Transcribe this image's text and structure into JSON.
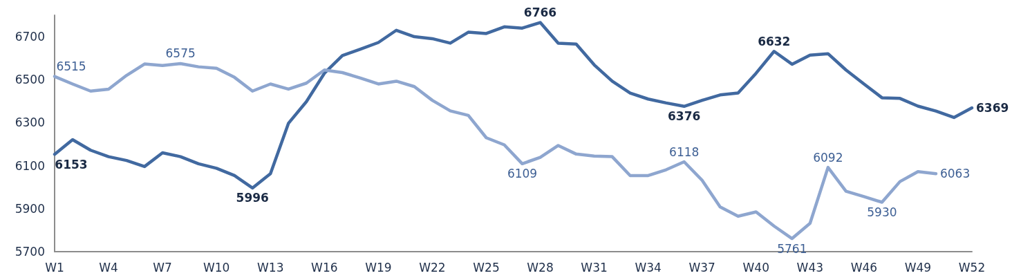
{
  "chart_data": {
    "type": "line",
    "categories": [
      "W1",
      null,
      null,
      "W4",
      null,
      null,
      "W7",
      null,
      null,
      "W10",
      null,
      null,
      "W13",
      null,
      null,
      "W16",
      null,
      null,
      "W19",
      null,
      null,
      "W22",
      null,
      null,
      "W25",
      null,
      null,
      "W28",
      null,
      null,
      "W31",
      null,
      null,
      "W34",
      null,
      null,
      "W37",
      null,
      null,
      "W40",
      null,
      null,
      "W43",
      null,
      null,
      "W46",
      null,
      null,
      "W49",
      null,
      null,
      "W52"
    ],
    "series": [
      {
        "color": "#4169a0",
        "values": [
          6153,
          6221,
          6172,
          6142,
          6124,
          6096,
          6160,
          6142,
          6109,
          6088,
          6054,
          5996,
          6063,
          6297,
          6398,
          6530,
          6612,
          6642,
          6673,
          6730,
          6700,
          6691,
          6670,
          6721,
          6715,
          6746,
          6740,
          6766,
          6670,
          6666,
          6569,
          6493,
          6438,
          6410,
          6392,
          6376,
          6404,
          6429,
          6438,
          6530,
          6632,
          6572,
          6614,
          6621,
          6545,
          6480,
          6416,
          6413,
          6377,
          6354,
          6324,
          6369
        ],
        "value_labels": [
          "6153",
          null,
          null,
          null,
          null,
          null,
          null,
          null,
          null,
          null,
          null,
          "5996",
          null,
          null,
          null,
          null,
          null,
          null,
          null,
          null,
          null,
          null,
          null,
          null,
          null,
          null,
          null,
          "6766",
          null,
          null,
          null,
          null,
          null,
          null,
          null,
          "6376",
          null,
          null,
          null,
          null,
          "6632",
          null,
          null,
          null,
          null,
          null,
          null,
          null,
          null,
          null,
          null,
          "6369"
        ]
      },
      {
        "color": "#8ea6cf",
        "values": [
          6515,
          6480,
          6447,
          6456,
          6520,
          6573,
          6566,
          6575,
          6560,
          6553,
          6511,
          6447,
          6480,
          6456,
          6484,
          6545,
          6533,
          6508,
          6480,
          6493,
          6468,
          6404,
          6355,
          6334,
          6230,
          6197,
          6109,
          6139,
          6194,
          6154,
          6145,
          6142,
          6054,
          6054,
          6081,
          6118,
          6032,
          5908,
          5865,
          5885,
          5819,
          5761,
          5832,
          6092,
          5981,
          5956,
          5930,
          6026,
          6072,
          6063,
          null,
          null
        ],
        "value_labels": [
          "6515",
          null,
          null,
          null,
          null,
          null,
          null,
          "6575",
          null,
          null,
          null,
          null,
          null,
          null,
          null,
          null,
          null,
          null,
          null,
          null,
          null,
          null,
          null,
          null,
          null,
          null,
          "6109",
          null,
          null,
          null,
          null,
          null,
          null,
          null,
          null,
          "6118",
          null,
          null,
          null,
          null,
          null,
          "5761",
          null,
          "6092",
          null,
          null,
          "5930",
          null,
          null,
          "6063",
          null,
          null
        ]
      }
    ],
    "ylim": [
      5700,
      6800
    ],
    "yticks": [
      5700,
      5900,
      6100,
      6300,
      6500,
      6700
    ],
    "grid": false,
    "marker": "none",
    "line_style": "solid"
  }
}
